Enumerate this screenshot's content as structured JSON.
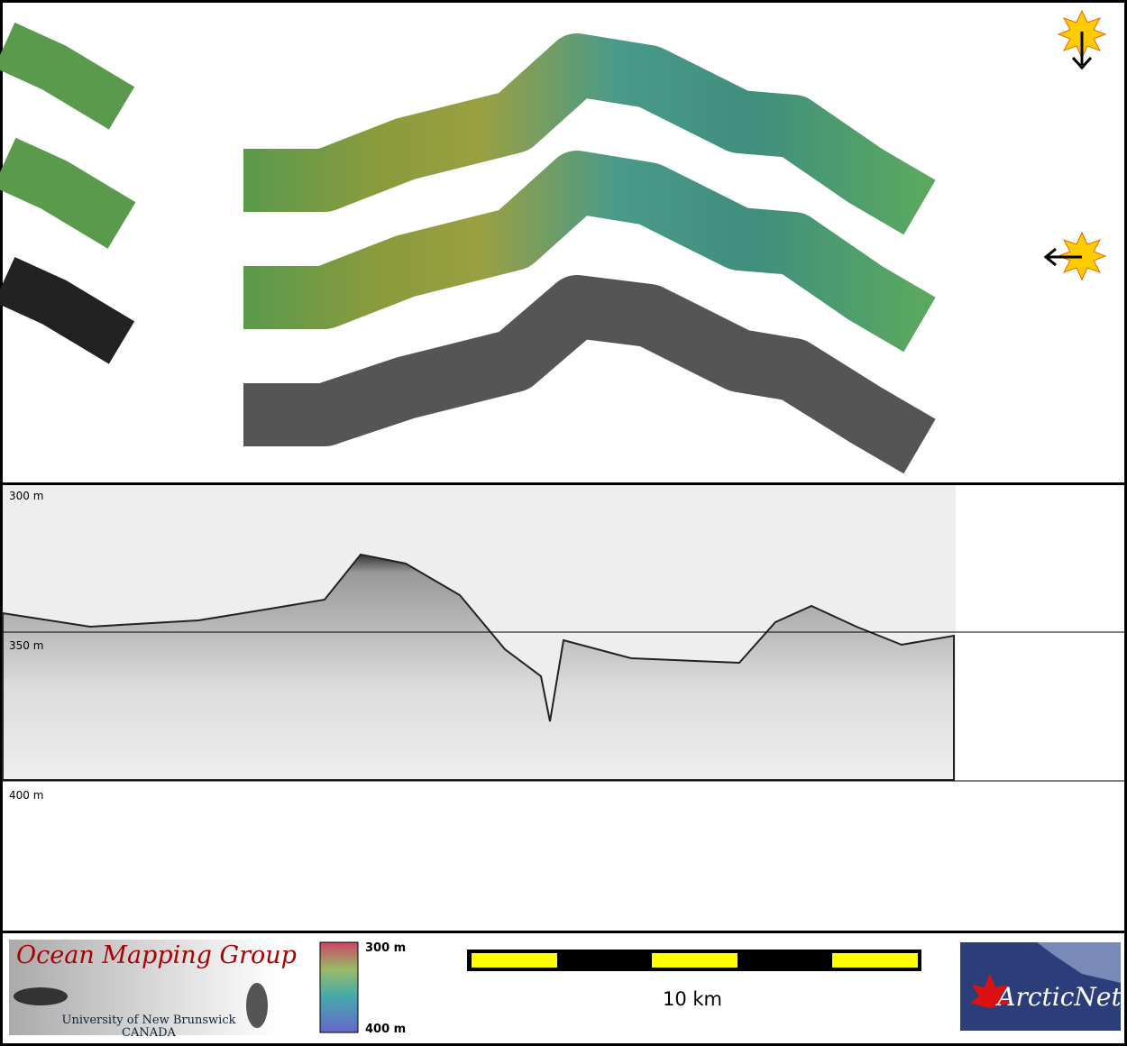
{
  "profile": {
    "depth_labels": [
      "300 m",
      "350 m",
      "400 m"
    ]
  },
  "footer": {
    "logo": {
      "title": "Ocean Mapping Group",
      "university": "University of New Brunswick",
      "country": "CANADA"
    },
    "colorbar": {
      "top": "300 m",
      "bottom": "400 m"
    },
    "scale": "10 km",
    "partner": "ArcticNet"
  }
}
